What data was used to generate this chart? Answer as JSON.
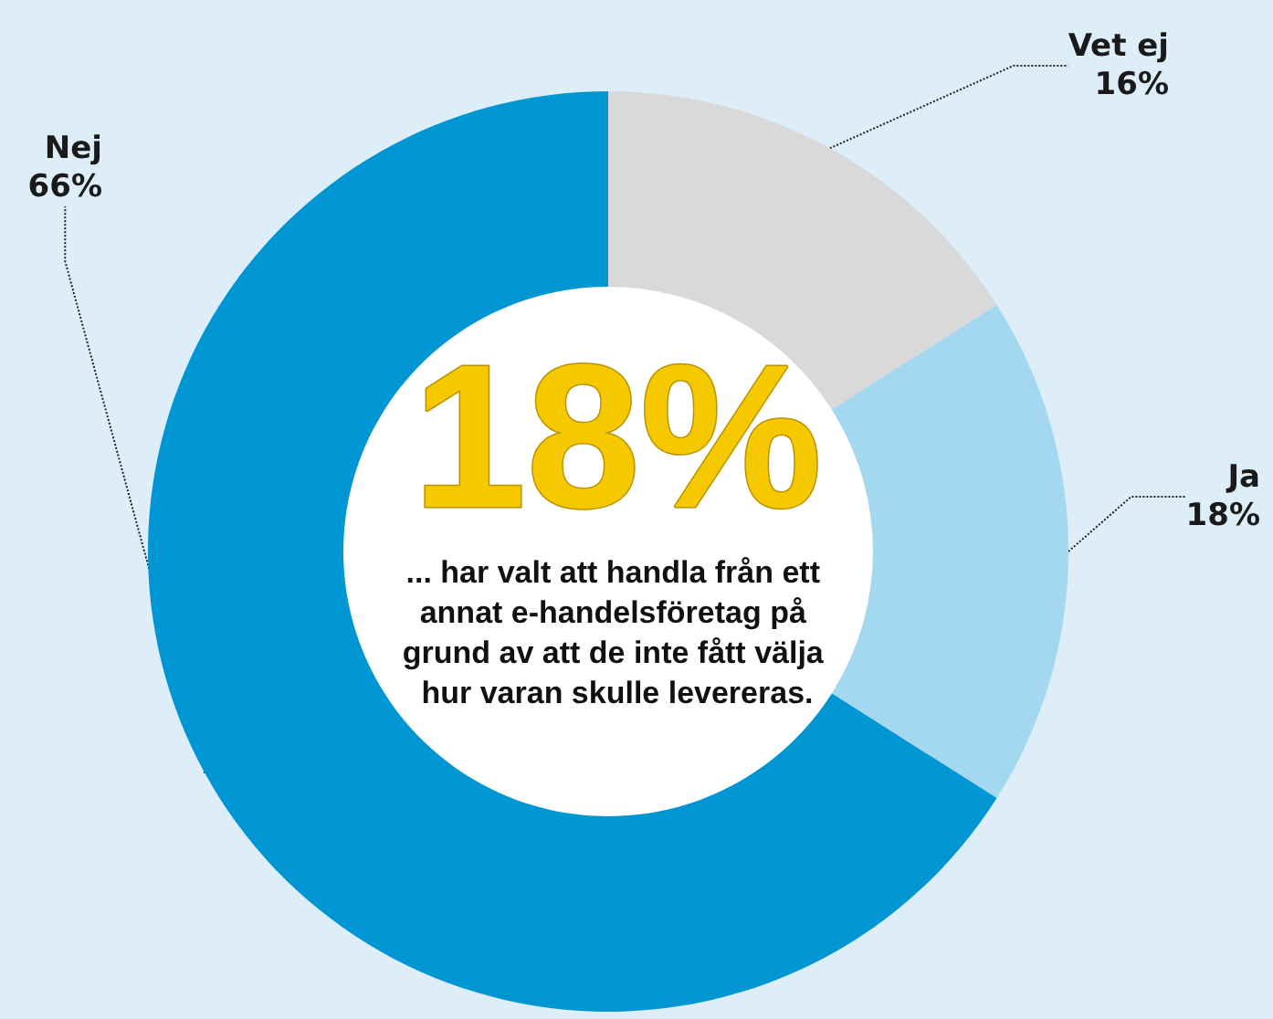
{
  "chart_data": {
    "type": "donut",
    "title": "18%",
    "subtitle": "... har valt att handla från ett annat e-handelsföretag på grund av att de inte fått välja hur varan skulle levereras.",
    "categories": [
      "Vet ej",
      "Ja",
      "Nej"
    ],
    "values": [
      16,
      18,
      66
    ],
    "value_labels": [
      "16%",
      "18%",
      "66%"
    ],
    "colors": [
      "#d9d9d9",
      "#a3d8f0",
      "#0096d3"
    ],
    "legend": false
  }
}
